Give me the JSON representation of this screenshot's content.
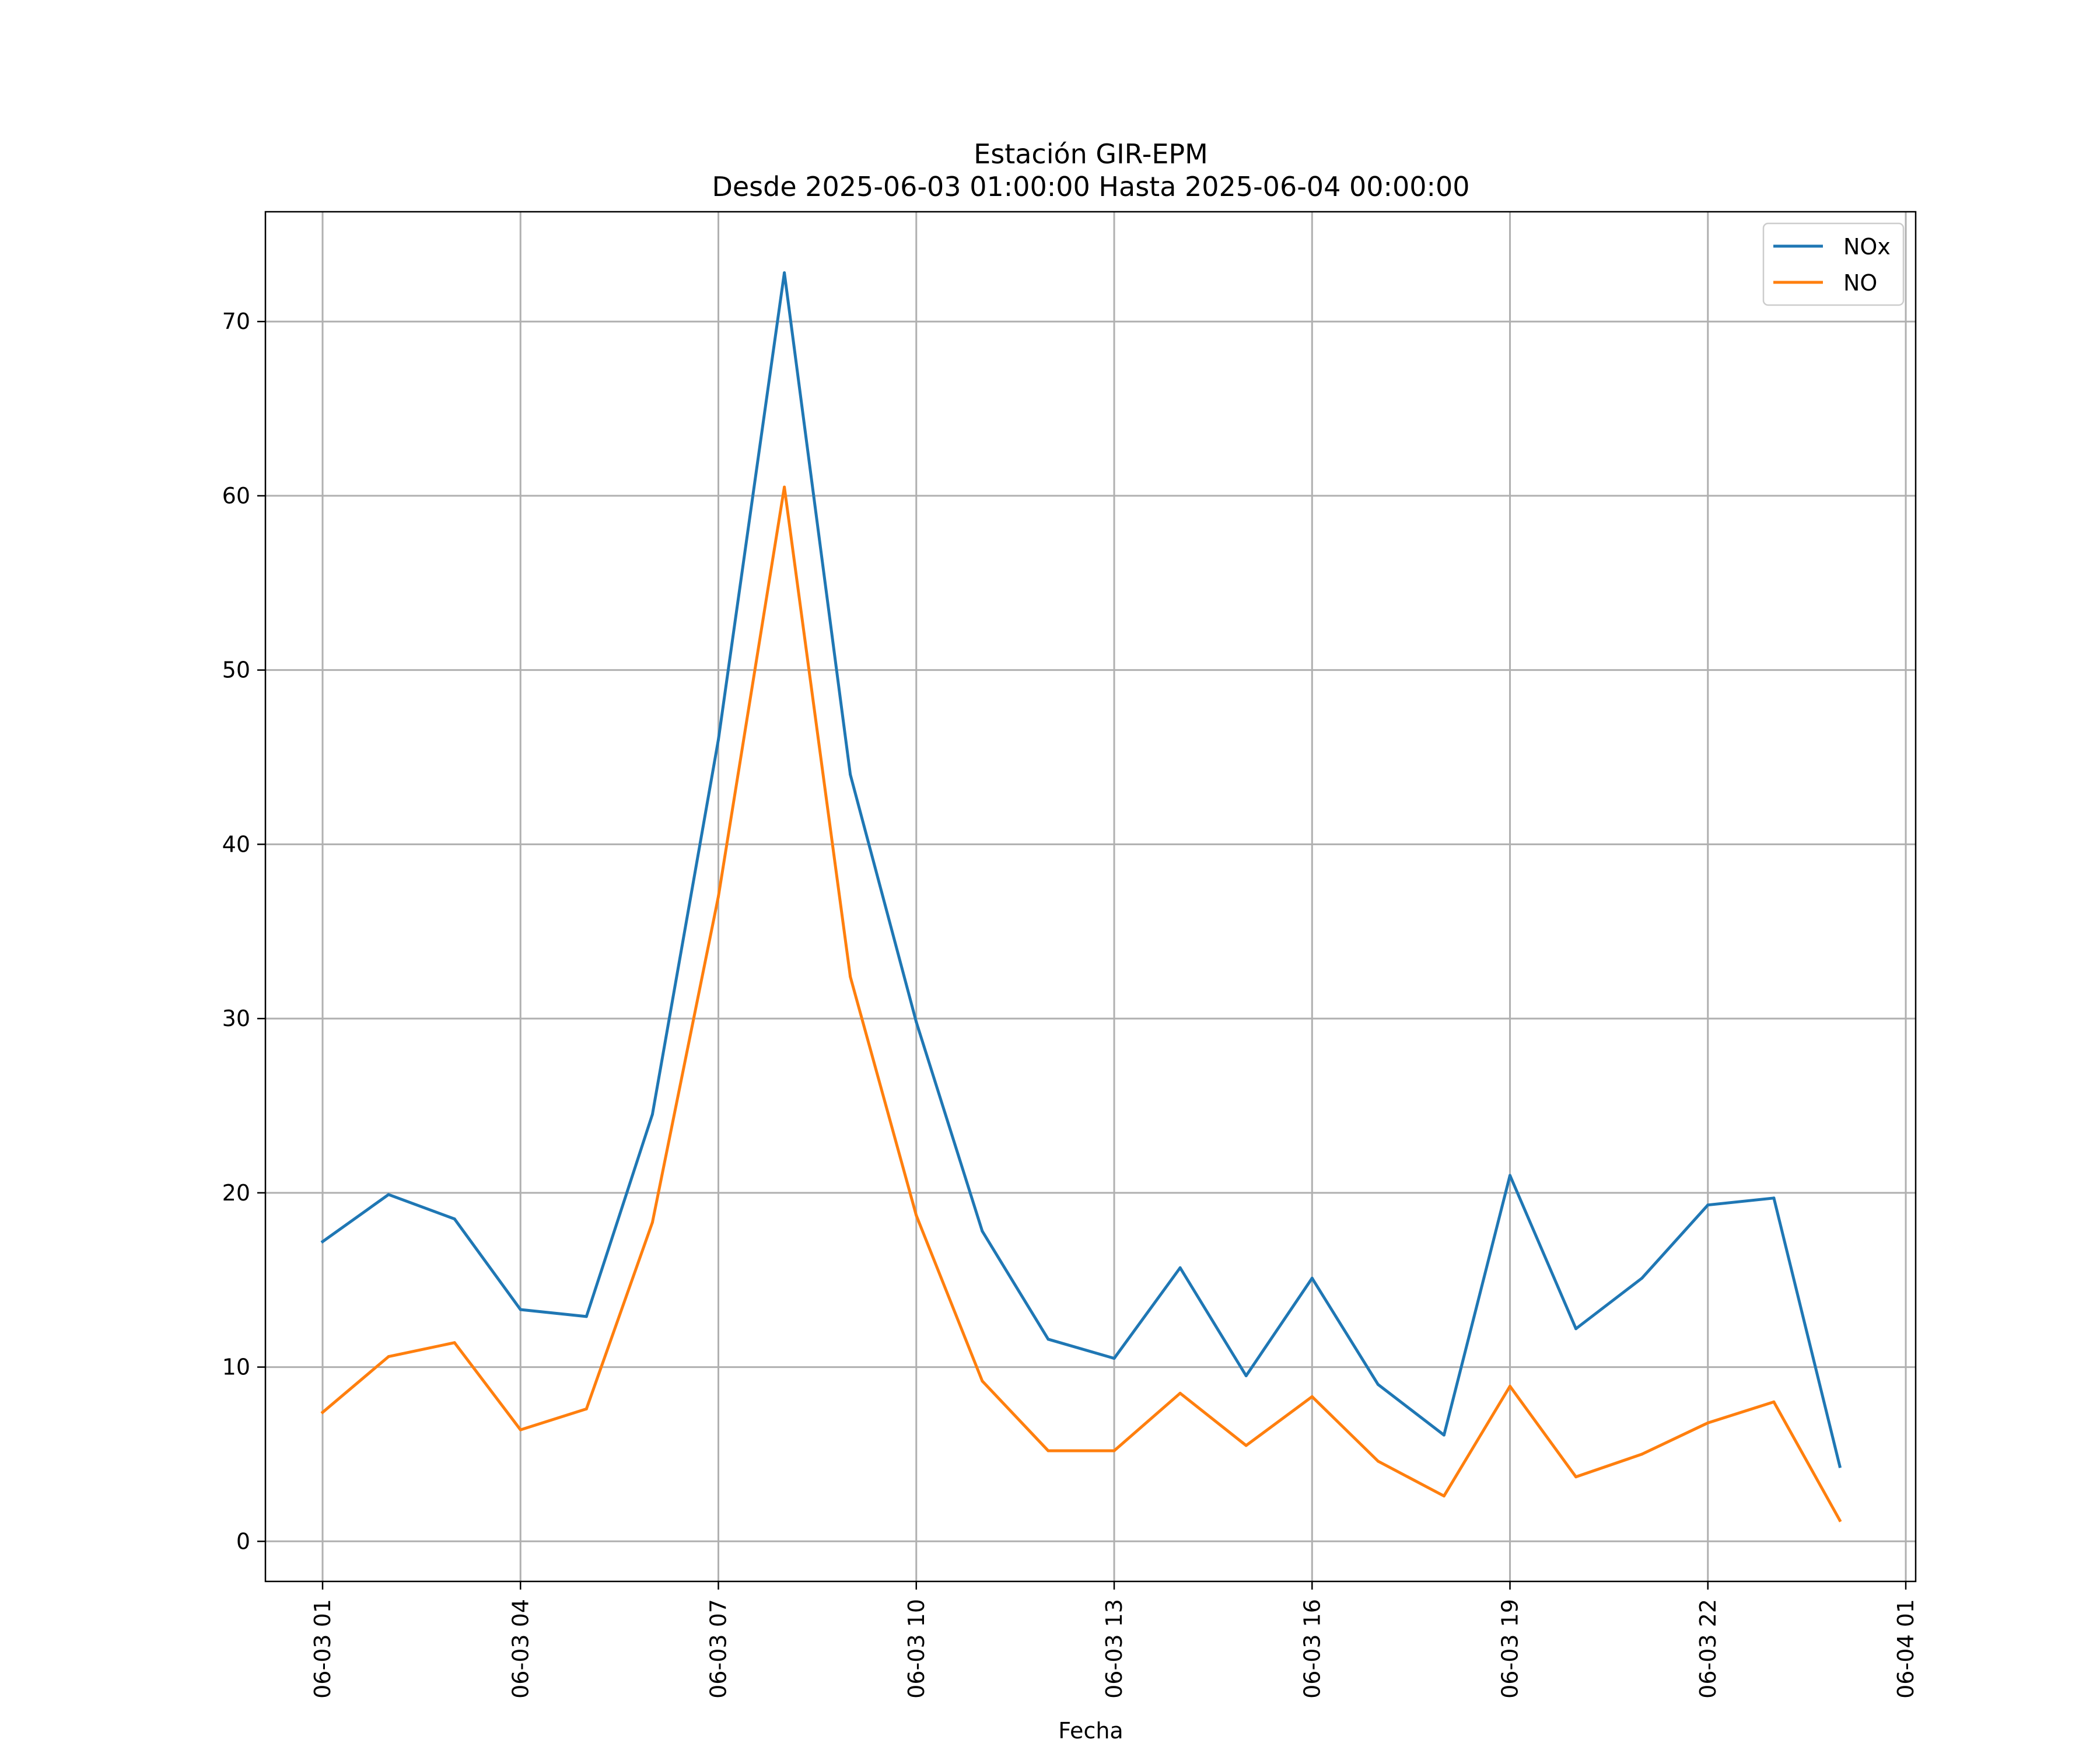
{
  "chart_data": {
    "type": "line",
    "title": "Estación GIR-EPM",
    "subtitle": "Desde 2025-06-03 01:00:00 Hasta 2025-06-04 00:00:00",
    "xlabel": "Fecha",
    "ylabel": "",
    "x": [
      "2025-06-03 01:00",
      "2025-06-03 02:00",
      "2025-06-03 03:00",
      "2025-06-03 04:00",
      "2025-06-03 05:00",
      "2025-06-03 06:00",
      "2025-06-03 07:00",
      "2025-06-03 08:00",
      "2025-06-03 09:00",
      "2025-06-03 10:00",
      "2025-06-03 11:00",
      "2025-06-03 12:00",
      "2025-06-03 13:00",
      "2025-06-03 14:00",
      "2025-06-03 15:00",
      "2025-06-03 16:00",
      "2025-06-03 17:00",
      "2025-06-03 18:00",
      "2025-06-03 19:00",
      "2025-06-03 20:00",
      "2025-06-03 21:00",
      "2025-06-03 22:00",
      "2025-06-03 23:00",
      "2025-06-04 00:00"
    ],
    "x_ticks": [
      "2025-06-03 01:00",
      "2025-06-03 04:00",
      "2025-06-03 07:00",
      "2025-06-03 10:00",
      "2025-06-03 13:00",
      "2025-06-03 16:00",
      "2025-06-03 19:00",
      "2025-06-03 22:00",
      "2025-06-04 01:00"
    ],
    "x_tick_labels": [
      "06-03 01",
      "06-03 04",
      "06-03 07",
      "06-03 10",
      "06-03 13",
      "06-03 16",
      "06-03 19",
      "06-03 22",
      "06-04 01"
    ],
    "xlim": [
      "2025-06-03 00:08",
      "2025-06-04 01:09"
    ],
    "y_ticks": [
      0,
      10,
      20,
      30,
      40,
      50,
      60,
      70
    ],
    "y_tick_labels": [
      "0",
      "10",
      "20",
      "30",
      "40",
      "50",
      "60",
      "70"
    ],
    "ylim": [
      -2.3,
      76.3
    ],
    "grid": true,
    "legend_position": "top-right",
    "series": [
      {
        "name": "NOx",
        "color": "#1f77b4",
        "values": [
          17.2,
          19.9,
          18.5,
          13.3,
          12.9,
          24.5,
          46.0,
          72.8,
          44.0,
          29.8,
          17.8,
          11.6,
          10.5,
          15.7,
          9.5,
          15.1,
          9.0,
          6.1,
          21.0,
          12.2,
          15.1,
          19.3,
          19.7,
          4.3
        ]
      },
      {
        "name": "NO",
        "color": "#ff7f0e",
        "values": [
          7.4,
          10.6,
          11.4,
          6.4,
          7.6,
          18.3,
          37.0,
          60.5,
          32.4,
          18.7,
          9.2,
          5.2,
          5.2,
          8.5,
          5.5,
          8.3,
          4.6,
          2.6,
          8.9,
          3.7,
          5.0,
          6.8,
          8.0,
          1.2
        ]
      }
    ]
  }
}
